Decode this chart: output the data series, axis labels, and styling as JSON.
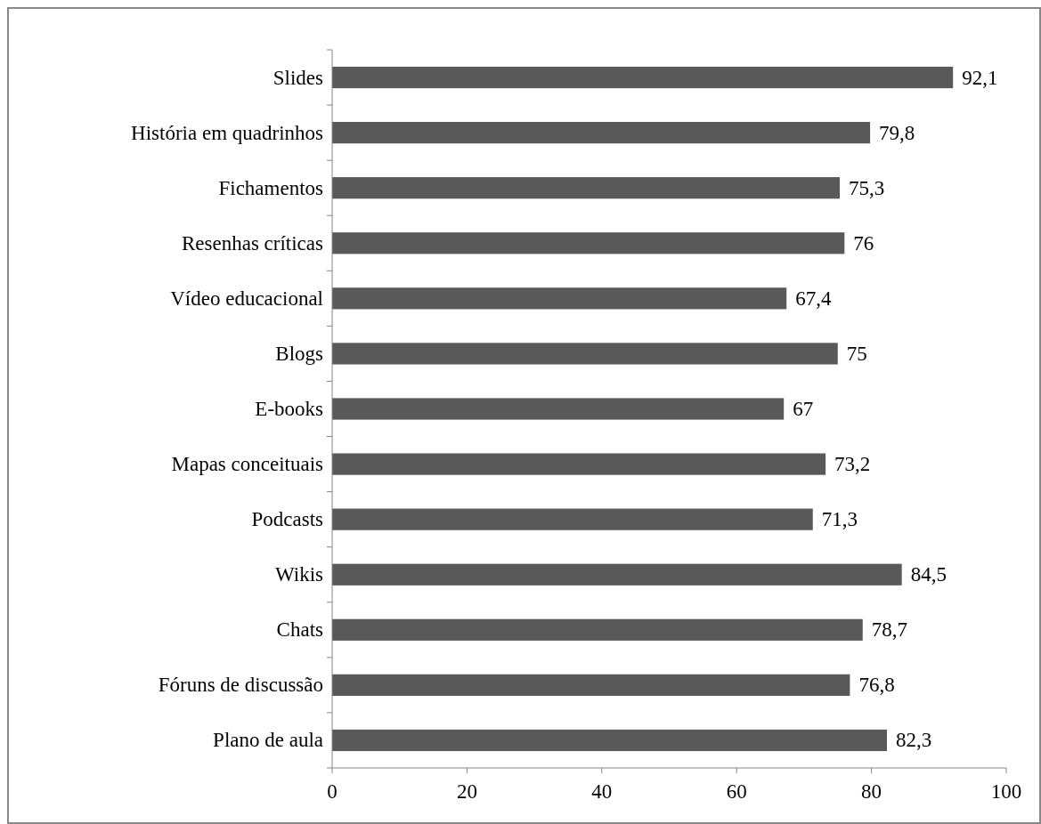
{
  "chart_data": {
    "type": "bar",
    "orientation": "horizontal",
    "categories": [
      "Slides",
      "História em quadrinhos",
      "Fichamentos",
      "Resenhas críticas",
      "Vídeo educacional",
      "Blogs",
      "E-books",
      "Mapas conceituais",
      "Podcasts",
      "Wikis",
      "Chats",
      "Fóruns de discussão",
      "Plano de aula"
    ],
    "values": [
      92.1,
      79.8,
      75.3,
      76,
      67.4,
      75,
      67,
      73.2,
      71.3,
      84.5,
      78.7,
      76.8,
      82.3
    ],
    "value_labels": [
      "92,1",
      "79,8",
      "75,3",
      "76",
      "67,4",
      "75",
      "67",
      "73,2",
      "71,3",
      "84,5",
      "78,7",
      "76,8",
      "82,3"
    ],
    "color": "#595959",
    "xlim": [
      0,
      100
    ],
    "xticks": [
      0,
      20,
      40,
      60,
      80,
      100
    ]
  }
}
